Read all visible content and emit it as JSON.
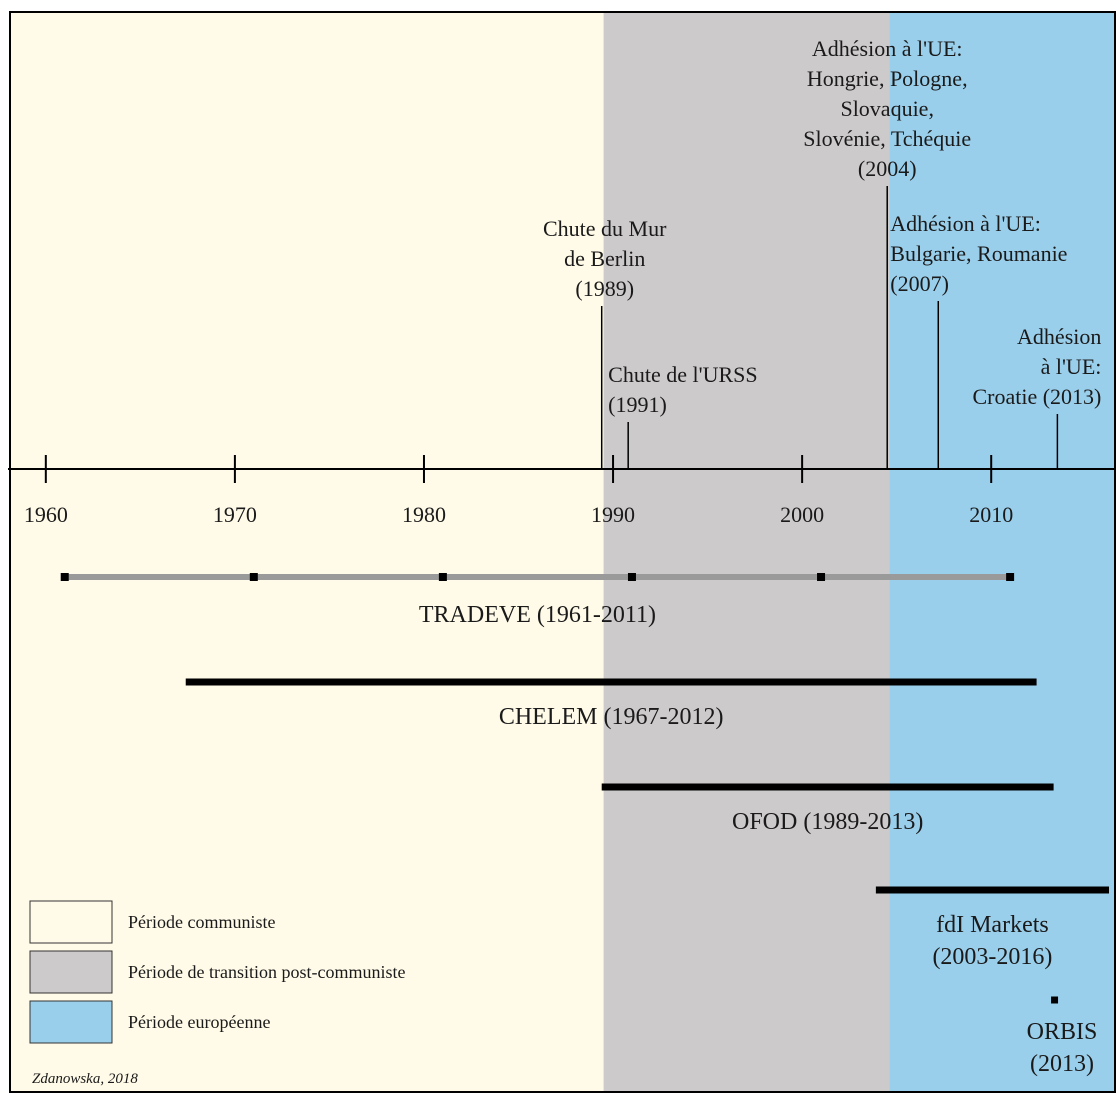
{
  "axis": {
    "start_year": 1958,
    "end_year": 2016.6,
    "ticks": [
      1960,
      1970,
      1980,
      1990,
      2000,
      2010
    ],
    "tick_labels": [
      "1960",
      "1970",
      "1980",
      "1990",
      "2000",
      "2010"
    ]
  },
  "periods": [
    {
      "key": "communist",
      "from": 1958,
      "to": 1989.5,
      "color": "#fffbe8",
      "legend": "Période communiste"
    },
    {
      "key": "transition",
      "from": 1989.5,
      "to": 2004.6,
      "color": "#cdcacb",
      "legend": "Période de transition post-communiste"
    },
    {
      "key": "european",
      "from": 2004.6,
      "to": 2016.6,
      "color": "#9acfec",
      "legend": "Période européenne"
    }
  ],
  "events": [
    {
      "key": "berlin",
      "year": 1989.4,
      "lines": [
        "Chute du Mur",
        "de Berlin",
        "(1989)"
      ]
    },
    {
      "key": "urss",
      "year": 1990.8,
      "lines": [
        "Chute de l'URSS",
        "(1991)"
      ]
    },
    {
      "key": "ue-2004",
      "year": 2004.5,
      "lines": [
        "Adhésion à l'UE:",
        "Hongrie, Pologne,",
        "Slovaquie,",
        "Slovénie, Tchéquie",
        "(2004)"
      ]
    },
    {
      "key": "ue-2007",
      "year": 2007.2,
      "lines": [
        "Adhésion à l'UE:",
        "Bulgarie, Roumanie",
        "(2007)"
      ]
    },
    {
      "key": "ue-2013",
      "year": 2013.5,
      "lines": [
        "Adhésion",
        "à l'UE:",
        "Croatie (2013)"
      ]
    }
  ],
  "datasets": [
    {
      "key": "tradeve",
      "start": 1961,
      "end": 2011,
      "style": "gray",
      "markers": [
        1961,
        1971,
        1981,
        1991,
        2001,
        2011
      ],
      "lines": [
        "TRADEVE (1961-2011)"
      ]
    },
    {
      "key": "chelem",
      "start": 1967.4,
      "end": 2012.4,
      "style": "black",
      "lines": [
        "CHELEM (1967-2012)"
      ]
    },
    {
      "key": "ofod",
      "start": 1989.4,
      "end": 2013.3,
      "style": "black",
      "lines": [
        "OFOD (1989-2013)"
      ]
    },
    {
      "key": "fdi",
      "start": 2003.9,
      "end": 2016.6,
      "style": "black",
      "lines": [
        "fdI Markets",
        "(2003-2016)"
      ]
    },
    {
      "key": "orbis",
      "start": 2013.2,
      "end": 2013.5,
      "style": "point",
      "lines": [
        "ORBIS",
        "(2013)"
      ]
    }
  ],
  "credit": "Zdanowska, 2018"
}
